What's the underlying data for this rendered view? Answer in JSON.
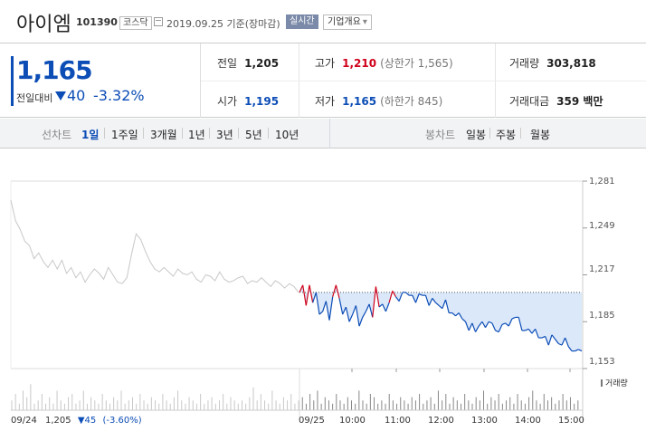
{
  "header": {
    "name": "아이엠",
    "code": "101390",
    "market": "코스닥",
    "date": "2019.09.25 기준(장마감)",
    "realtime": "실시간",
    "company_overview": "기업개요"
  },
  "quote": {
    "price": "1,165",
    "change_label": "전일대비",
    "change": "40",
    "change_pct": "-3.32%",
    "prev_close_label": "전일",
    "prev_close": "1,205",
    "high_label": "고가",
    "high": "1,210",
    "upper_limit": "(상한가 1,565)",
    "volume_label": "거래량",
    "volume": "303,818",
    "open_label": "시가",
    "open": "1,195",
    "low_label": "저가",
    "low": "1,165",
    "lower_limit": "(하한가 845)",
    "amount_label": "거래대금",
    "amount": "359 백만"
  },
  "tabs": {
    "line_label": "선차트",
    "line": [
      "1일",
      "1주일",
      "3개월",
      "1년",
      "3년",
      "5년",
      "10년"
    ],
    "candle_label": "봉차트",
    "candle": [
      "일봉",
      "주봉",
      "월봉"
    ],
    "selected": "1일"
  },
  "colors": {
    "up": "#d0021b",
    "down": "#0c4db6",
    "prev": "#c8c8c8",
    "fill": "#dbe8fa"
  },
  "chart_data": {
    "type": "line",
    "y_ticks": [
      "1,281",
      "1,249",
      "1,217",
      "1,185",
      "1,153"
    ],
    "ylim": [
      1153,
      1281
    ],
    "x_ticks": [
      "09/25",
      "10:00",
      "11:00",
      "12:00",
      "13:00",
      "14:00",
      "15:00"
    ],
    "prev_day": {
      "label": "09/24",
      "close": "1,205",
      "change": "45",
      "change_pct": "(-3.60%)",
      "values": [
        1268,
        1254,
        1248,
        1240,
        1237,
        1228,
        1232,
        1226,
        1222,
        1227,
        1221,
        1227,
        1218,
        1222,
        1215,
        1219,
        1212,
        1217,
        1221,
        1218,
        1214,
        1222,
        1217,
        1212,
        1211,
        1215,
        1231,
        1245,
        1241,
        1233,
        1226,
        1221,
        1219,
        1222,
        1219,
        1216,
        1221,
        1218,
        1217,
        1219,
        1214,
        1212,
        1217,
        1216,
        1213,
        1219,
        1214,
        1212,
        1213,
        1215,
        1216,
        1211,
        1213,
        1212,
        1215,
        1212,
        1209,
        1213,
        1211,
        1208,
        1211,
        1209,
        1205
      ]
    },
    "today": {
      "values": [
        1205,
        1210,
        1196,
        1210,
        1198,
        1205,
        1190,
        1192,
        1199,
        1186,
        1202,
        1210,
        1201,
        1190,
        1195,
        1185,
        1190,
        1196,
        1182,
        1188,
        1192,
        1197,
        1188,
        1209,
        1195,
        1197,
        1192,
        1198,
        1206,
        1202,
        1199,
        1205,
        1205,
        1203,
        1203,
        1198,
        1204,
        1203,
        1203,
        1196,
        1201,
        1198,
        1196,
        1194,
        1200,
        1191,
        1191,
        1189,
        1191,
        1187,
        1185,
        1179,
        1184,
        1178,
        1182,
        1185,
        1181,
        1185,
        1184,
        1179,
        1178,
        1183,
        1184,
        1182,
        1187,
        1188,
        1188,
        1179,
        1179,
        1180,
        1177,
        1180,
        1174,
        1174,
        1175,
        1169,
        1176,
        1173,
        1170,
        1169,
        1174,
        1168,
        1165,
        1165,
        1166,
        1165
      ],
      "prev_close": 1205
    },
    "volume_label": "거래량",
    "volume": [
      3,
      5,
      2,
      6,
      4,
      8,
      2,
      3,
      5,
      2,
      4,
      2,
      6,
      3,
      2,
      4,
      5,
      2,
      3,
      6,
      2,
      4,
      3,
      2,
      5,
      3,
      2,
      4,
      3,
      6,
      2,
      3,
      4,
      2,
      5,
      3,
      2,
      4,
      3,
      2,
      5,
      3,
      2,
      4,
      6,
      3,
      2,
      4,
      3,
      2,
      5,
      2,
      3,
      4,
      2,
      3,
      5,
      2,
      4,
      3,
      2,
      3,
      2,
      4,
      7,
      3,
      5,
      3,
      2,
      6,
      3,
      2,
      4,
      3,
      5,
      2,
      3,
      4,
      2,
      5,
      3,
      6,
      2,
      4,
      3,
      2,
      5,
      3,
      2,
      4,
      3,
      2,
      6,
      3,
      2,
      5,
      4,
      2,
      3,
      2,
      5,
      3,
      2,
      4,
      3,
      2,
      4,
      3,
      5,
      2,
      3,
      4,
      2,
      6,
      3,
      5,
      2,
      4,
      3,
      2,
      5,
      3,
      2,
      4,
      3,
      6,
      2,
      4,
      3,
      5,
      2,
      3,
      4,
      2,
      5,
      3,
      2,
      4,
      6,
      3,
      2,
      5,
      3,
      4,
      2,
      3,
      5,
      3,
      4,
      2,
      3
    ]
  }
}
